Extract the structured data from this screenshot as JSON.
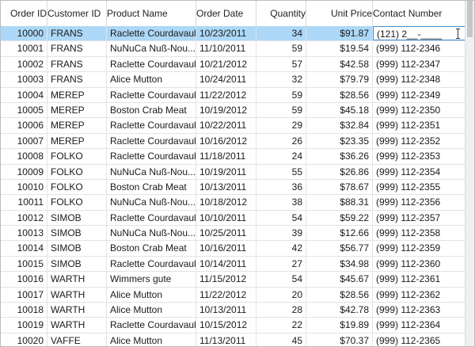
{
  "columns": [
    "Order ID",
    "Customer ID",
    "Product Name",
    "Order Date",
    "Quantity",
    "Unit Price",
    "Contact Number"
  ],
  "editing_value": "(121) 2__-____",
  "rows": [
    {
      "id": "10000",
      "cust": "FRANS",
      "prod": "Raclette Courdavault",
      "date": "10/23/2011",
      "qty": "34",
      "price": "$91.87",
      "phone": "(121) 2__-____"
    },
    {
      "id": "10001",
      "cust": "FRANS",
      "prod": "NuNuCa  Nuß-Nou...",
      "date": "11/10/2011",
      "qty": "59",
      "price": "$19.54",
      "phone": "(999) 112-2346"
    },
    {
      "id": "10002",
      "cust": "FRANS",
      "prod": "Raclette Courdavault",
      "date": "10/21/2012",
      "qty": "57",
      "price": "$42.58",
      "phone": "(999) 112-2347"
    },
    {
      "id": "10003",
      "cust": "FRANS",
      "prod": "Alice Mutton",
      "date": "10/24/2011",
      "qty": "32",
      "price": "$79.79",
      "phone": "(999) 112-2348"
    },
    {
      "id": "10004",
      "cust": "MEREP",
      "prod": "Raclette Courdavault",
      "date": "11/22/2012",
      "qty": "59",
      "price": "$28.56",
      "phone": "(999) 112-2349"
    },
    {
      "id": "10005",
      "cust": "MEREP",
      "prod": "Boston Crab Meat",
      "date": "10/19/2012",
      "qty": "59",
      "price": "$45.18",
      "phone": "(999) 112-2350"
    },
    {
      "id": "10006",
      "cust": "MEREP",
      "prod": "Raclette Courdavault",
      "date": "10/22/2011",
      "qty": "29",
      "price": "$32.84",
      "phone": "(999) 112-2351"
    },
    {
      "id": "10007",
      "cust": "MEREP",
      "prod": "Raclette Courdavault",
      "date": "10/16/2012",
      "qty": "26",
      "price": "$23.35",
      "phone": "(999) 112-2352"
    },
    {
      "id": "10008",
      "cust": "FOLKO",
      "prod": "Raclette Courdavault",
      "date": "11/18/2011",
      "qty": "24",
      "price": "$36.26",
      "phone": "(999) 112-2353"
    },
    {
      "id": "10009",
      "cust": "FOLKO",
      "prod": "NuNuCa  Nuß-Nou...",
      "date": "10/19/2011",
      "qty": "55",
      "price": "$26.86",
      "phone": "(999) 112-2354"
    },
    {
      "id": "10010",
      "cust": "FOLKO",
      "prod": "Boston Crab Meat",
      "date": "10/13/2011",
      "qty": "36",
      "price": "$78.67",
      "phone": "(999) 112-2355"
    },
    {
      "id": "10011",
      "cust": "FOLKO",
      "prod": "NuNuCa  Nuß-Nou...",
      "date": "10/18/2012",
      "qty": "38",
      "price": "$88.31",
      "phone": "(999) 112-2356"
    },
    {
      "id": "10012",
      "cust": "SIMOB",
      "prod": "Raclette Courdavault",
      "date": "10/10/2011",
      "qty": "54",
      "price": "$59.22",
      "phone": "(999) 112-2357"
    },
    {
      "id": "10013",
      "cust": "SIMOB",
      "prod": "NuNuCa  Nuß-Nou...",
      "date": "10/25/2011",
      "qty": "39",
      "price": "$12.66",
      "phone": "(999) 112-2358"
    },
    {
      "id": "10014",
      "cust": "SIMOB",
      "prod": "Boston Crab Meat",
      "date": "10/16/2011",
      "qty": "42",
      "price": "$56.77",
      "phone": "(999) 112-2359"
    },
    {
      "id": "10015",
      "cust": "SIMOB",
      "prod": "Raclette Courdavault",
      "date": "10/14/2011",
      "qty": "27",
      "price": "$34.98",
      "phone": "(999) 112-2360"
    },
    {
      "id": "10016",
      "cust": "WARTH",
      "prod": "Wimmers gute",
      "date": "11/15/2012",
      "qty": "54",
      "price": "$45.67",
      "phone": "(999) 112-2361"
    },
    {
      "id": "10017",
      "cust": "WARTH",
      "prod": "Alice Mutton",
      "date": "11/22/2012",
      "qty": "20",
      "price": "$28.56",
      "phone": "(999) 112-2362"
    },
    {
      "id": "10018",
      "cust": "WARTH",
      "prod": "Alice Mutton",
      "date": "10/13/2011",
      "qty": "28",
      "price": "$42.78",
      "phone": "(999) 112-2363"
    },
    {
      "id": "10019",
      "cust": "WARTH",
      "prod": "Raclette Courdavault",
      "date": "10/15/2012",
      "qty": "22",
      "price": "$19.89",
      "phone": "(999) 112-2364"
    },
    {
      "id": "10020",
      "cust": "VAFFE",
      "prod": "Alice Mutton",
      "date": "11/13/2011",
      "qty": "45",
      "price": "$70.37",
      "phone": "(999) 112-2365"
    }
  ]
}
